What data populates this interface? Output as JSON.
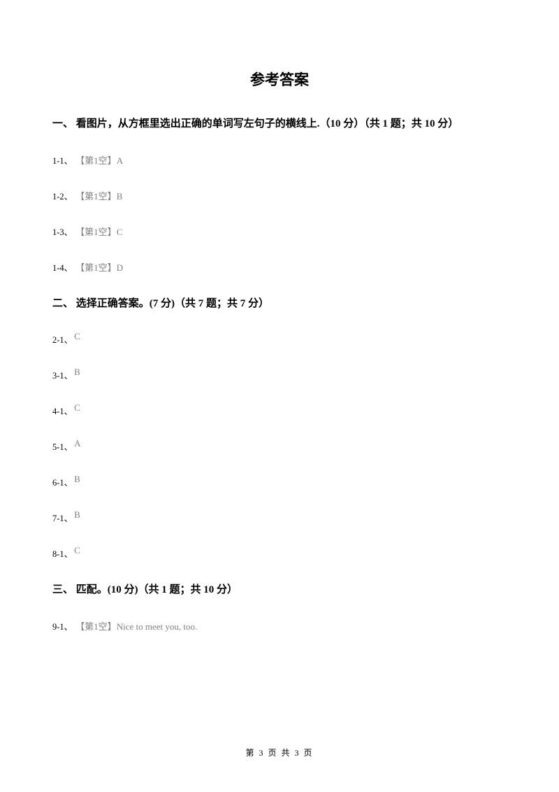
{
  "title": "参考答案",
  "sections": [
    {
      "header": "一、 看图片，从方框里选出正确的单词写左句子的横线上.（10 分）（共 1 题；共 10 分）",
      "answers": [
        {
          "label": "1-1、",
          "prefix": "【第1空】",
          "value": "A"
        },
        {
          "label": "1-2、",
          "prefix": "【第1空】",
          "value": "B"
        },
        {
          "label": "1-3、",
          "prefix": "【第1空】",
          "value": "C"
        },
        {
          "label": "1-4、",
          "prefix": "【第1空】",
          "value": "D"
        }
      ]
    },
    {
      "header": "二、 选择正确答案。(7 分)（共 7 题；共 7 分）",
      "answers": [
        {
          "label": "2-1、",
          "prefix": "",
          "value": "C"
        },
        {
          "label": "3-1、",
          "prefix": "",
          "value": "B"
        },
        {
          "label": "4-1、",
          "prefix": "",
          "value": "C"
        },
        {
          "label": "5-1、",
          "prefix": "",
          "value": "A"
        },
        {
          "label": "6-1、",
          "prefix": "",
          "value": "B"
        },
        {
          "label": "7-1、",
          "prefix": "",
          "value": "B"
        },
        {
          "label": "8-1、",
          "prefix": "",
          "value": "C"
        }
      ]
    },
    {
      "header": "三、 匹配。(10 分)（共 1 题；共 10 分）",
      "answers": [
        {
          "label": "9-1、",
          "prefix": "【第1空】",
          "value": "Nice to meet you, too."
        }
      ]
    }
  ],
  "footer": "第 3 页 共 3 页"
}
